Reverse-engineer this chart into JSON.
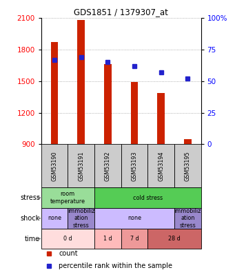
{
  "title": "GDS1851 / 1379307_at",
  "samples": [
    "GSM53190",
    "GSM53191",
    "GSM53192",
    "GSM53193",
    "GSM53194",
    "GSM53195"
  ],
  "bar_values": [
    1870,
    2080,
    1660,
    1490,
    1390,
    950
  ],
  "bar_base": 900,
  "percentile_values": [
    67,
    69,
    65,
    62,
    57,
    52
  ],
  "ylim_left": [
    900,
    2100
  ],
  "ylim_right": [
    0,
    100
  ],
  "yticks_left": [
    900,
    1200,
    1500,
    1800,
    2100
  ],
  "yticks_right": [
    0,
    25,
    50,
    75,
    100
  ],
  "bar_color": "#cc2200",
  "percentile_color": "#2222cc",
  "stress_row": [
    {
      "label": "room\ntemperature",
      "start": 0,
      "end": 2,
      "color": "#99dd99"
    },
    {
      "label": "cold stress",
      "start": 2,
      "end": 6,
      "color": "#55cc55"
    }
  ],
  "shock_row": [
    {
      "label": "none",
      "start": 0,
      "end": 1,
      "color": "#ccbbff"
    },
    {
      "label": "immobiliz\nation\nstress",
      "start": 1,
      "end": 2,
      "color": "#9988cc"
    },
    {
      "label": "none",
      "start": 2,
      "end": 5,
      "color": "#ccbbff"
    },
    {
      "label": "immobiliz\nation\nstress",
      "start": 5,
      "end": 6,
      "color": "#9988cc"
    }
  ],
  "time_row": [
    {
      "label": "0 d",
      "start": 0,
      "end": 2,
      "color": "#ffdddd"
    },
    {
      "label": "1 d",
      "start": 2,
      "end": 3,
      "color": "#ffbbbb"
    },
    {
      "label": "7 d",
      "start": 3,
      "end": 4,
      "color": "#ee9999"
    },
    {
      "label": "28 d",
      "start": 4,
      "end": 6,
      "color": "#cc6666"
    }
  ],
  "row_labels": [
    "stress",
    "shock",
    "time"
  ],
  "sample_bg_color": "#cccccc",
  "grid_color": "#999999",
  "fig_width": 3.41,
  "fig_height": 4.05,
  "dpi": 100
}
